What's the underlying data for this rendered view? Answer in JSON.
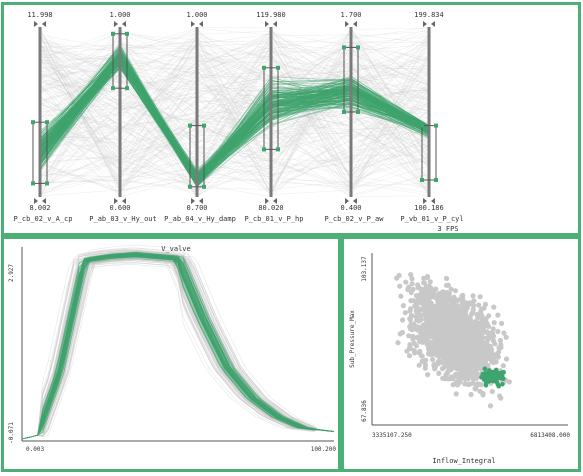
{
  "colors": {
    "highlight": "#3fa46e",
    "context": "#c8c8c8",
    "axis": "#7a7a7a",
    "border": "#4caf74"
  },
  "chart_data": [
    {
      "type": "parallel_coordinates",
      "axes": [
        {
          "name": "P_cb_02_v_A_cp",
          "max": "11.998",
          "min": "8.002",
          "brush": [
            0.08,
            0.44
          ]
        },
        {
          "name": "P_ab_03_v_Hy_out",
          "max": "1.000",
          "min": "0.600",
          "brush": [
            0.64,
            0.96
          ]
        },
        {
          "name": "P_ab_04_v_Hy_damp",
          "max": "1.000",
          "min": "0.700",
          "brush": [
            0.06,
            0.42
          ]
        },
        {
          "name": "P_cb_01_v_P_hp",
          "max": "119.980",
          "min": "80.020",
          "brush": [
            0.28,
            0.76
          ]
        },
        {
          "name": "P_cb_02_v_P_aw",
          "max": "1.700",
          "min": "0.400",
          "brush": [
            0.5,
            0.88
          ]
        },
        {
          "name": "P_vb_01_v_P_cyl",
          "max": "199.834",
          "min": "100.186",
          "brush": [
            0.1,
            0.42
          ]
        }
      ],
      "status": "3 FPS"
    },
    {
      "type": "line",
      "title": "V_valve",
      "ymax": "2.927",
      "ymin": "-0.071",
      "xmin": "0.003",
      "xmax": "100.200",
      "profile": [
        [
          0,
          0.0
        ],
        [
          0.05,
          0.02
        ],
        [
          0.12,
          0.35
        ],
        [
          0.2,
          0.96
        ],
        [
          0.28,
          0.98
        ],
        [
          0.36,
          0.99
        ],
        [
          0.5,
          0.97
        ],
        [
          0.58,
          0.65
        ],
        [
          0.66,
          0.38
        ],
        [
          0.74,
          0.22
        ],
        [
          0.82,
          0.12
        ],
        [
          0.9,
          0.06
        ],
        [
          1.0,
          0.04
        ]
      ]
    },
    {
      "type": "scatter",
      "xlabel": "Inflow_Integral",
      "ylabel": "Sub_Pressure_Max",
      "xmin": "3335107.250",
      "xmax": "6813408.000",
      "ymin": "67.836",
      "ymax": "103.137"
    }
  ]
}
